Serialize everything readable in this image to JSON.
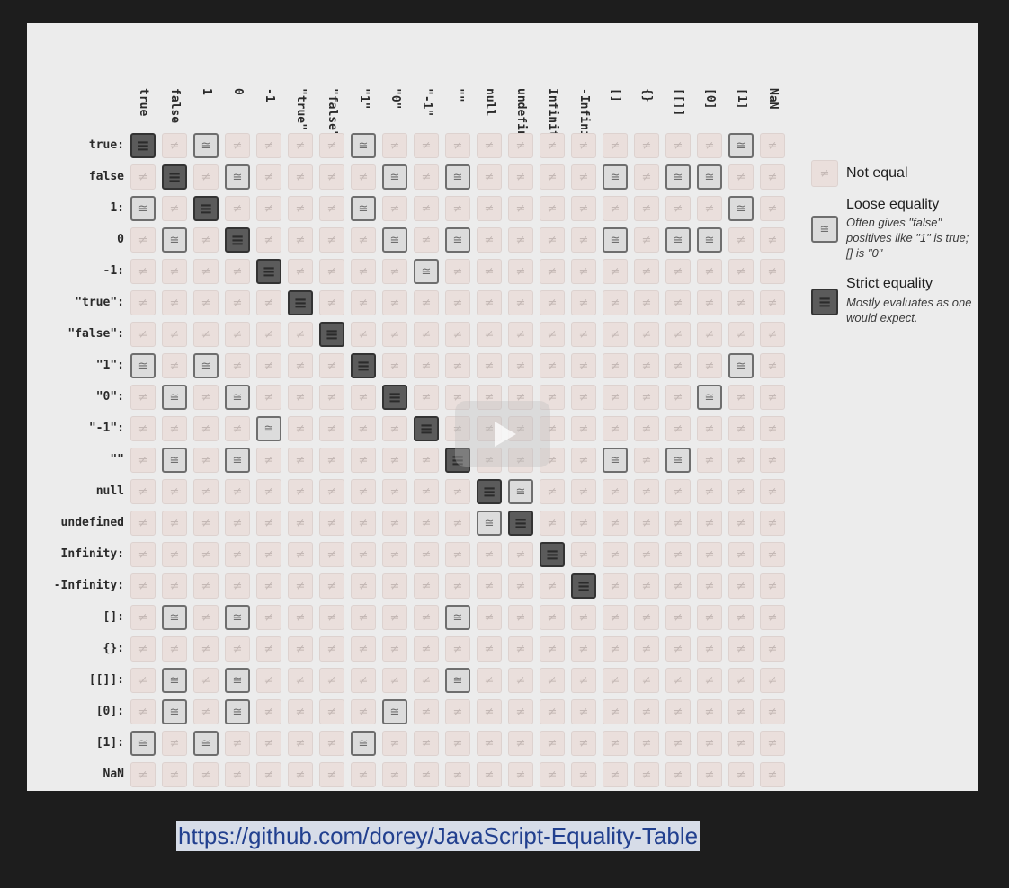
{
  "columns": [
    "true",
    "false",
    "1",
    "0",
    "-1",
    "\"true\"",
    "\"false\"",
    "\"1\"",
    "\"0\"",
    "\"-1\"",
    "\"\"",
    "null",
    "undefined",
    "Infinity",
    "-Infinity",
    "[]",
    "{}",
    "[[]]",
    "[0]",
    "[1]",
    "NaN"
  ],
  "rows": [
    "true:",
    "false",
    "1:",
    "0",
    "-1:",
    "\"true\":",
    "\"false\":",
    "\"1\":",
    "\"0\":",
    "\"-1\":",
    "\"\"",
    "null",
    "undefined",
    "Infinity:",
    "-Infinity:",
    "[]:",
    "{}:",
    "[[]]:",
    "[0]:",
    "[1]:",
    "NaN"
  ],
  "symbols": {
    "neq": "≠",
    "loose": "≅",
    "strict": "≡"
  },
  "matrix": [
    "SNLNNNNLNNNNNNNNNNNLN",
    "NSNLNNNNLNLNNNNLNLLNN",
    "LNSNNNNLNNNNNNNNNNNLN",
    "NLNSNNNNLNLNNNNLNLLNN",
    "NNNNSNNNNLNNNNNNNNNNN",
    "NNNNNSNNNNNNNNNNNNNNN",
    "NNNNNNSNNNNNNNNNNNNNN",
    "LNLNNNNSNNNNNNNNNNNLN",
    "NLNLNNNNSNNNNNNNNNLNN",
    "NNNNLNNNNSNNNNNNNNNNN",
    "NLNLNNNNNNSNNNNLNLNNN",
    "NNNNNNNNNNNSLNNNNNNNN",
    "NNNNNNNNNNNLSNNNNNNNN",
    "NNNNNNNNNNNNNSNNNNNNN",
    "NNNNNNNNNNNNNNSNNNNNN",
    "NLNLNNNNNNLNNNNNNNNNN",
    "NNNNNNNNNNNNNNNNNNNNN",
    "NLNLNNNNNNLNNNNNNNNNN",
    "NLNLNNNNLNNNNNNNNNNNN",
    "LNLNNNNLNNNNNNNNNNNNN",
    "NNNNNNNNNNNNNNNNNNNNN"
  ],
  "legend": {
    "not_equal": {
      "title": "Not equal"
    },
    "loose": {
      "title": "Loose equality",
      "note": "Often gives \"false\" positives like \"1\" is true; [] is \"0\""
    },
    "strict": {
      "title": "Strict equality",
      "note": "Mostly evaluates as one would expect."
    }
  },
  "url": "https://github.com/dorey/JavaScript-Equality-Table",
  "colors": {
    "not_equal_bg": "#eadfdc",
    "loose_bg": "#dcdcdc",
    "loose_border": "#6e6e6e",
    "strict_bg": "#5b5b5b",
    "slide_bg": "#ececec",
    "page_bg": "#1d1d1d",
    "url_text": "#22408f"
  },
  "icons": {
    "play_overlay": "play-icon"
  }
}
